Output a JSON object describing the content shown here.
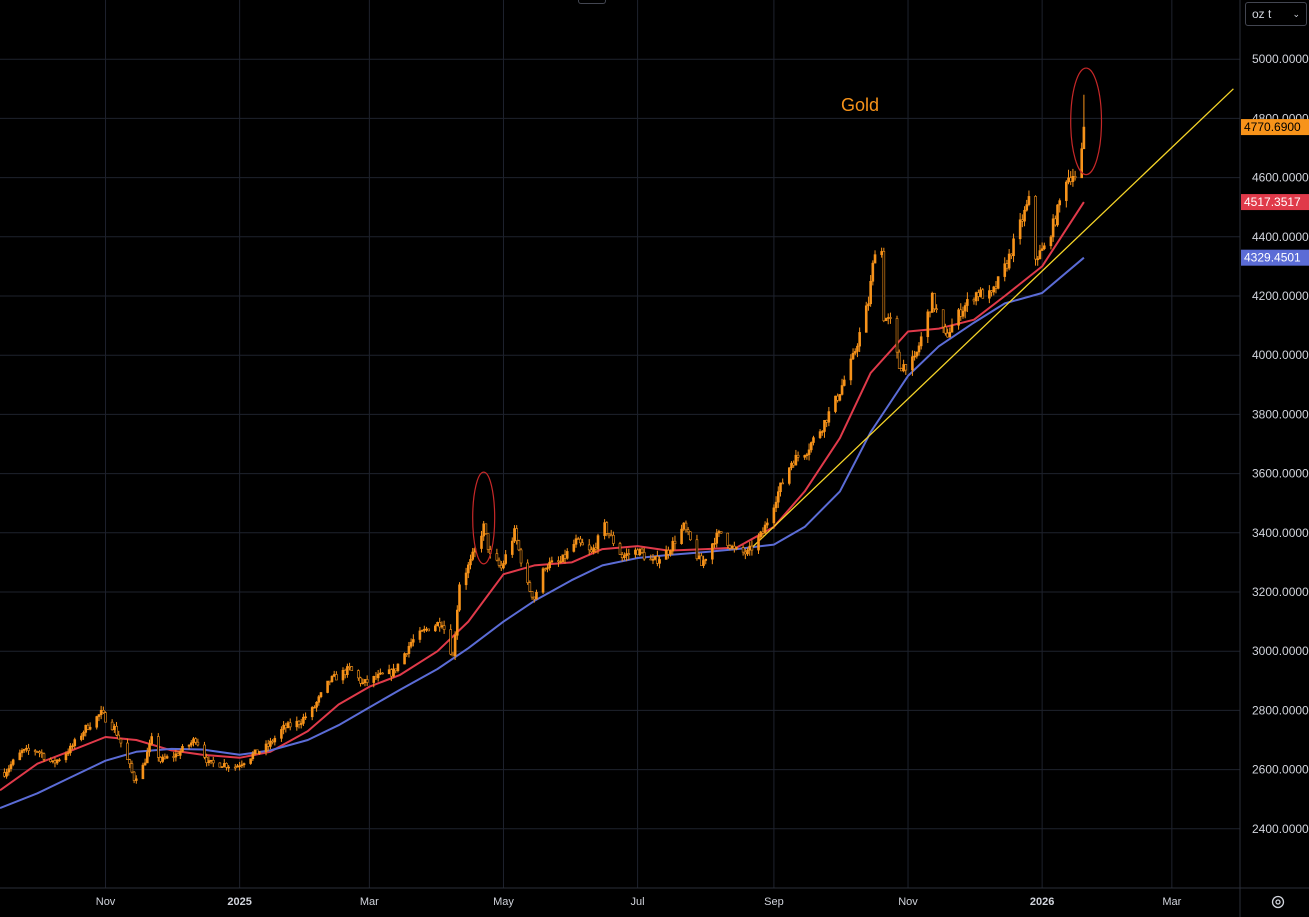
{
  "chart_data": {
    "type": "candlestick",
    "title": "Gold",
    "unit_label": "oz t",
    "x_tick_labels": [
      "Nov",
      "2025",
      "Mar",
      "May",
      "Jul",
      "Sep",
      "Nov",
      "2026",
      "Mar"
    ],
    "x_tick_dates": [
      "2024-11-01",
      "2025-01-01",
      "2025-03-01",
      "2025-05-01",
      "2025-07-01",
      "2025-09-01",
      "2025-11-01",
      "2026-01-01",
      "2026-03-01"
    ],
    "y_tick_labels": [
      "2400.0000",
      "2600.0000",
      "2800.0000",
      "3000.0000",
      "3200.0000",
      "3400.0000",
      "3600.0000",
      "3800.0000",
      "4000.0000",
      "4200.0000",
      "4400.0000",
      "4600.0000",
      "4800.0000",
      "5000.0000"
    ],
    "y_ticks": [
      2400,
      2600,
      2800,
      3000,
      3200,
      3400,
      3600,
      3800,
      4000,
      4200,
      4400,
      4600,
      4800,
      5000
    ],
    "ylim": [
      2200,
      5200
    ],
    "xlim": [
      "2024-09-14",
      "2026-04-01"
    ],
    "grid": true,
    "price_series": {
      "name": "Gold",
      "color": "#f7931a",
      "points": [
        [
          "2024-09-16",
          2590
        ],
        [
          "2024-09-24",
          2660
        ],
        [
          "2024-10-01",
          2665
        ],
        [
          "2024-10-08",
          2620
        ],
        [
          "2024-10-16",
          2670
        ],
        [
          "2024-10-23",
          2740
        ],
        [
          "2024-10-30",
          2790
        ],
        [
          "2024-11-05",
          2740
        ],
        [
          "2024-11-08",
          2690
        ],
        [
          "2024-11-14",
          2570
        ],
        [
          "2024-11-18",
          2610
        ],
        [
          "2024-11-22",
          2700
        ],
        [
          "2024-11-26",
          2630
        ],
        [
          "2024-12-03",
          2650
        ],
        [
          "2024-12-10",
          2690
        ],
        [
          "2024-12-12",
          2705
        ],
        [
          "2024-12-18",
          2620
        ],
        [
          "2024-12-24",
          2620
        ],
        [
          "2024-12-30",
          2610
        ],
        [
          "2025-01-07",
          2650
        ],
        [
          "2025-01-14",
          2680
        ],
        [
          "2025-01-21",
          2740
        ],
        [
          "2025-01-28",
          2760
        ],
        [
          "2025-02-03",
          2800
        ],
        [
          "2025-02-11",
          2900
        ],
        [
          "2025-02-20",
          2940
        ],
        [
          "2025-02-26",
          2890
        ],
        [
          "2025-03-04",
          2910
        ],
        [
          "2025-03-12",
          2930
        ],
        [
          "2025-03-20",
          3030
        ],
        [
          "2025-03-28",
          3080
        ],
        [
          "2025-04-03",
          3100
        ],
        [
          "2025-04-08",
          2980
        ],
        [
          "2025-04-11",
          3230
        ],
        [
          "2025-04-16",
          3300
        ],
        [
          "2025-04-22",
          3420
        ],
        [
          "2025-04-25",
          3320
        ],
        [
          "2025-04-30",
          3280
        ],
        [
          "2025-05-06",
          3400
        ],
        [
          "2025-05-12",
          3220
        ],
        [
          "2025-05-15",
          3180
        ],
        [
          "2025-05-20",
          3290
        ],
        [
          "2025-05-27",
          3300
        ],
        [
          "2025-06-03",
          3370
        ],
        [
          "2025-06-10",
          3330
        ],
        [
          "2025-06-16",
          3420
        ],
        [
          "2025-06-24",
          3320
        ],
        [
          "2025-07-01",
          3340
        ],
        [
          "2025-07-08",
          3300
        ],
        [
          "2025-07-15",
          3340
        ],
        [
          "2025-07-22",
          3420
        ],
        [
          "2025-07-30",
          3290
        ],
        [
          "2025-08-05",
          3380
        ],
        [
          "2025-08-08",
          3400
        ],
        [
          "2025-08-14",
          3340
        ],
        [
          "2025-08-20",
          3330
        ],
        [
          "2025-08-27",
          3400
        ],
        [
          "2025-09-02",
          3520
        ],
        [
          "2025-09-09",
          3640
        ],
        [
          "2025-09-16",
          3680
        ],
        [
          "2025-09-23",
          3760
        ],
        [
          "2025-09-30",
          3860
        ],
        [
          "2025-10-07",
          3990
        ],
        [
          "2025-10-14",
          4180
        ],
        [
          "2025-10-17",
          4360
        ],
        [
          "2025-10-20",
          4350
        ],
        [
          "2025-10-21",
          4130
        ],
        [
          "2025-10-24",
          4110
        ],
        [
          "2025-10-28",
          3960
        ],
        [
          "2025-11-04",
          3980
        ],
        [
          "2025-11-12",
          4190
        ],
        [
          "2025-11-18",
          4060
        ],
        [
          "2025-11-25",
          4150
        ],
        [
          "2025-12-02",
          4210
        ],
        [
          "2025-12-09",
          4200
        ],
        [
          "2025-12-16",
          4310
        ],
        [
          "2025-12-22",
          4440
        ],
        [
          "2025-12-26",
          4520
        ],
        [
          "2025-12-29",
          4330
        ],
        [
          "2026-01-02",
          4360
        ],
        [
          "2026-01-07",
          4460
        ],
        [
          "2026-01-12",
          4600
        ],
        [
          "2026-01-15",
          4610
        ],
        [
          "2026-01-16",
          4590
        ],
        [
          "2026-01-19",
          4680
        ],
        [
          "2026-01-20",
          4770.69
        ]
      ]
    },
    "moving_averages": [
      {
        "color": "#e03a4a",
        "last_value": "4517.3517",
        "points": [
          [
            "2024-09-14",
            2530
          ],
          [
            "2024-10-01",
            2620
          ],
          [
            "2024-10-15",
            2660
          ],
          [
            "2024-11-01",
            2710
          ],
          [
            "2024-11-15",
            2700
          ],
          [
            "2024-12-01",
            2665
          ],
          [
            "2024-12-15",
            2650
          ],
          [
            "2025-01-01",
            2640
          ],
          [
            "2025-01-15",
            2660
          ],
          [
            "2025-02-01",
            2730
          ],
          [
            "2025-02-15",
            2820
          ],
          [
            "2025-03-01",
            2880
          ],
          [
            "2025-03-15",
            2920
          ],
          [
            "2025-04-01",
            3000
          ],
          [
            "2025-04-15",
            3100
          ],
          [
            "2025-05-01",
            3260
          ],
          [
            "2025-05-15",
            3290
          ],
          [
            "2025-06-01",
            3300
          ],
          [
            "2025-06-15",
            3345
          ],
          [
            "2025-07-01",
            3355
          ],
          [
            "2025-07-15",
            3340
          ],
          [
            "2025-08-01",
            3345
          ],
          [
            "2025-08-15",
            3350
          ],
          [
            "2025-09-01",
            3420
          ],
          [
            "2025-09-15",
            3540
          ],
          [
            "2025-10-01",
            3720
          ],
          [
            "2025-10-15",
            3940
          ],
          [
            "2025-11-01",
            4080
          ],
          [
            "2025-11-15",
            4090
          ],
          [
            "2025-12-01",
            4120
          ],
          [
            "2025-12-15",
            4200
          ],
          [
            "2026-01-01",
            4300
          ],
          [
            "2026-01-20",
            4517.35
          ]
        ]
      },
      {
        "color": "#5b6cd6",
        "last_value": "4329.4501",
        "points": [
          [
            "2024-09-14",
            2470
          ],
          [
            "2024-10-01",
            2520
          ],
          [
            "2024-10-15",
            2570
          ],
          [
            "2024-11-01",
            2630
          ],
          [
            "2024-11-15",
            2660
          ],
          [
            "2024-12-01",
            2670
          ],
          [
            "2024-12-15",
            2668
          ],
          [
            "2025-01-01",
            2650
          ],
          [
            "2025-01-15",
            2665
          ],
          [
            "2025-02-01",
            2700
          ],
          [
            "2025-02-15",
            2750
          ],
          [
            "2025-03-01",
            2810
          ],
          [
            "2025-03-15",
            2870
          ],
          [
            "2025-04-01",
            2940
          ],
          [
            "2025-04-15",
            3010
          ],
          [
            "2025-05-01",
            3100
          ],
          [
            "2025-05-15",
            3170
          ],
          [
            "2025-06-01",
            3240
          ],
          [
            "2025-06-15",
            3290
          ],
          [
            "2025-07-01",
            3315
          ],
          [
            "2025-07-15",
            3325
          ],
          [
            "2025-08-01",
            3335
          ],
          [
            "2025-08-15",
            3345
          ],
          [
            "2025-09-01",
            3360
          ],
          [
            "2025-09-15",
            3420
          ],
          [
            "2025-10-01",
            3540
          ],
          [
            "2025-10-15",
            3740
          ],
          [
            "2025-11-01",
            3930
          ],
          [
            "2025-11-15",
            4030
          ],
          [
            "2025-12-01",
            4110
          ],
          [
            "2025-12-15",
            4175
          ],
          [
            "2026-01-01",
            4210
          ],
          [
            "2026-01-20",
            4329.45
          ]
        ]
      }
    ],
    "trend_line": {
      "color": "#f5d428",
      "start": [
        "2025-08-22",
        3350
      ],
      "end": [
        "2026-03-29",
        4900
      ]
    },
    "annotations": [
      {
        "type": "ellipse",
        "color": "#c62828",
        "center": [
          "2025-04-22",
          3450
        ],
        "rx_days": 5,
        "ry_value": 155
      },
      {
        "type": "ellipse",
        "color": "#c62828",
        "center": [
          "2026-01-21",
          4790
        ],
        "rx_days": 7,
        "ry_value": 180
      }
    ],
    "last_price_label": "4770.6900",
    "last_price_color": "#f7931a"
  }
}
